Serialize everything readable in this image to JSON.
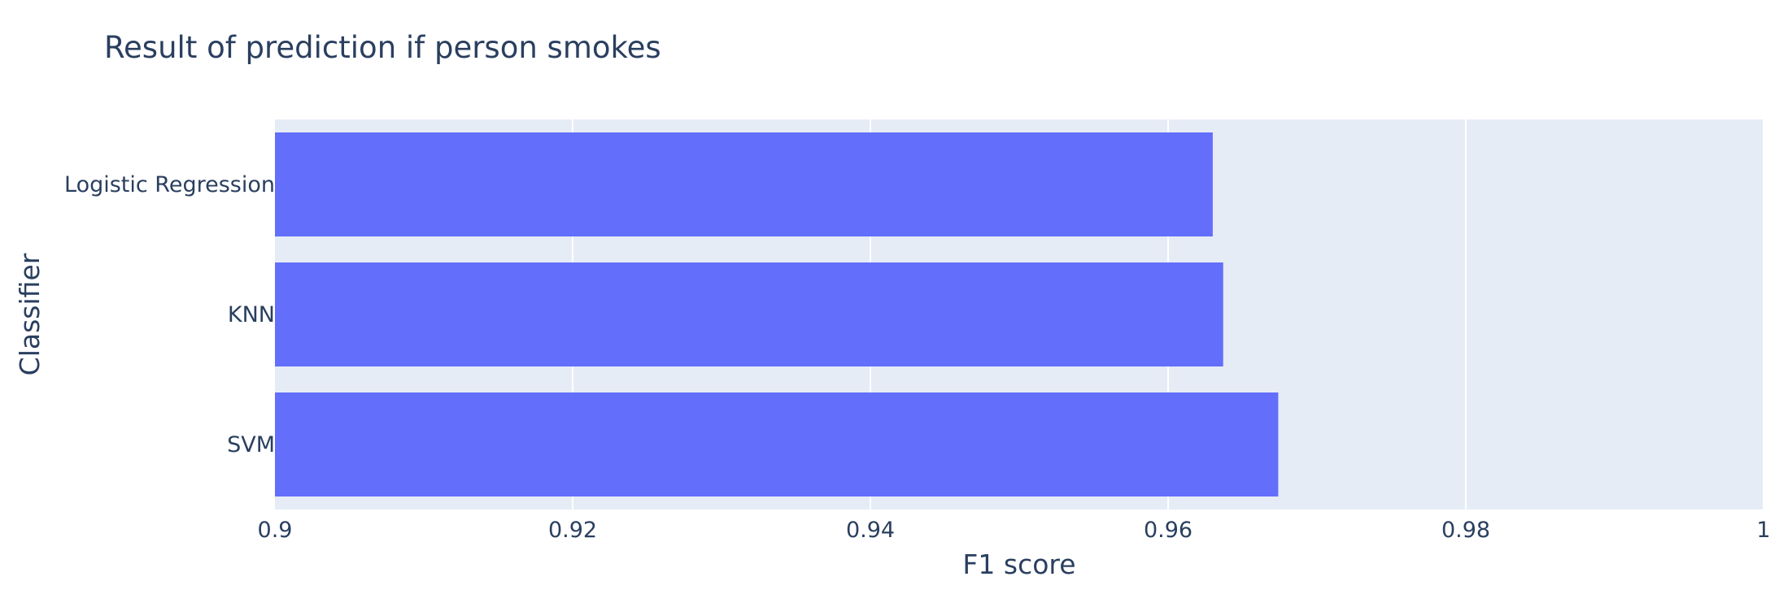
{
  "chart_data": {
    "type": "bar",
    "orientation": "horizontal",
    "title": "Result of prediction if person smokes",
    "xlabel": "F1 score",
    "ylabel": "Classifier",
    "categories": [
      "SVM",
      "KNN",
      "Logistic Regression"
    ],
    "values": [
      0.9674,
      0.9637,
      0.963
    ],
    "xlim": [
      0.9,
      1
    ],
    "xticks": [
      0.9,
      0.92,
      0.94,
      0.96,
      0.98,
      1
    ],
    "xtick_labels": [
      "0.9",
      "0.92",
      "0.94",
      "0.96",
      "0.98",
      "1"
    ],
    "grid": true,
    "legend": "none",
    "colors": {
      "bar": "#636efa",
      "plot_background": "#e5ecf6",
      "gridline": "#ffffff",
      "text": "#2a3f5f"
    }
  }
}
